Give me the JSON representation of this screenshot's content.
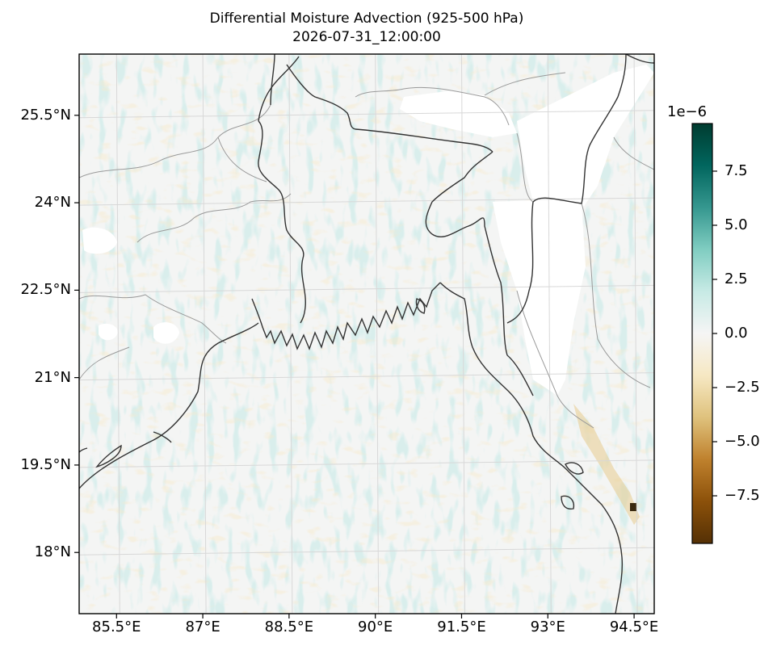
{
  "title": "Differential Moisture Advection (925-500 hPa)",
  "subtitle": "2026-07-31_12:00:00",
  "map": {
    "lon_ticks": [
      "85.5°E",
      "87°E",
      "88.5°E",
      "90°E",
      "91.5°E",
      "93°E",
      "94.5°E"
    ],
    "lat_ticks": [
      "25.5°N",
      "24°N",
      "22.5°N",
      "21°N",
      "19.5°N",
      "18°N"
    ],
    "lon_range": [
      84.85,
      94.85
    ],
    "lat_range": [
      16.95,
      26.55
    ],
    "lon_tick_values": [
      85.5,
      87,
      88.5,
      90,
      91.5,
      93,
      94.5
    ],
    "lat_tick_values": [
      25.5,
      24,
      22.5,
      21,
      19.5,
      18
    ],
    "coastline_color": "#333333",
    "border_color": "#999999",
    "gridline_color": "#d8d8d8"
  },
  "colorbar": {
    "colormap": "BrBG",
    "exponent_label": "1e−6",
    "range": [
      -9.7,
      9.7
    ],
    "tick_labels": [
      "7.5",
      "5.0",
      "2.5",
      "0.0",
      "−2.5",
      "−5.0",
      "−7.5"
    ],
    "tick_values": [
      7.5,
      5.0,
      2.5,
      0.0,
      -2.5,
      -5.0,
      -7.5
    ],
    "colors": [
      "#543005",
      "#8c510a",
      "#bf812d",
      "#dfc27d",
      "#f6e8c3",
      "#f5f5f5",
      "#c7eae5",
      "#80cdc1",
      "#35978f",
      "#01665e",
      "#003c30"
    ]
  }
}
